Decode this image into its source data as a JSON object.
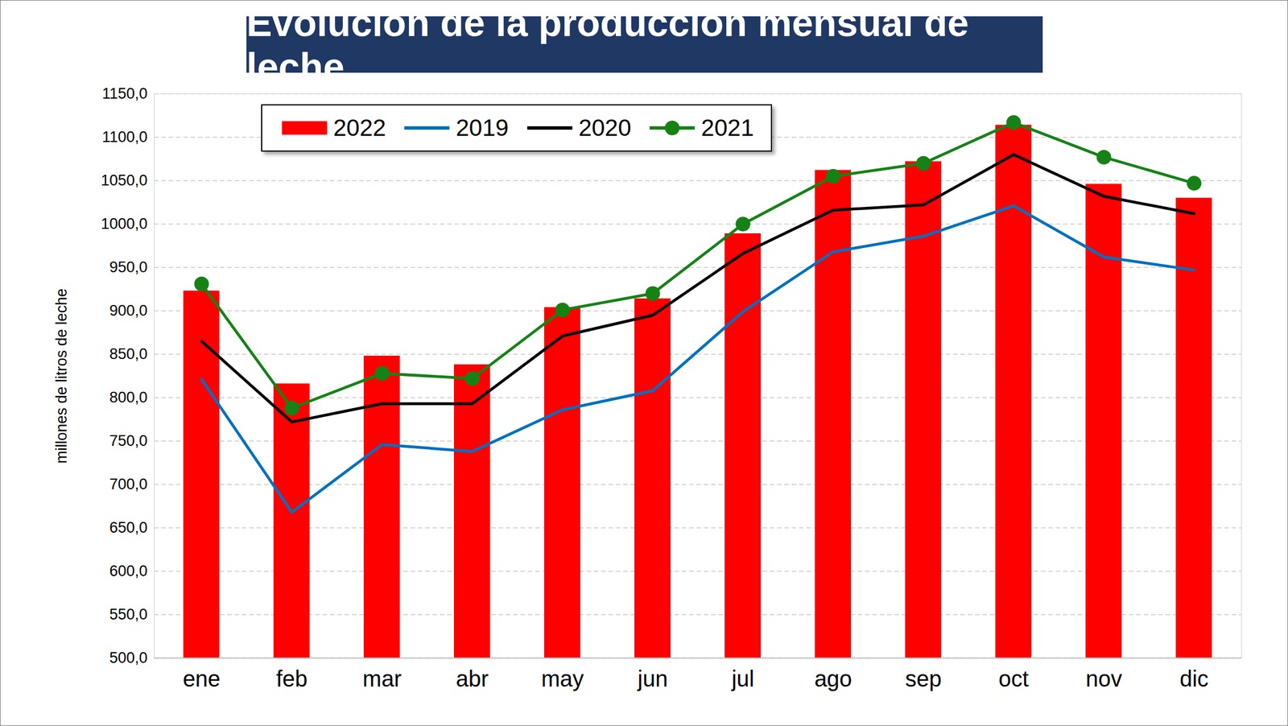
{
  "chart_data": {
    "type": "bar",
    "title": "Evolución de la producción mensual de leche",
    "ylabel": "millones de litros de leche",
    "categories": [
      "ene",
      "feb",
      "mar",
      "abr",
      "may",
      "jun",
      "jul",
      "ago",
      "sep",
      "oct",
      "nov",
      "dic"
    ],
    "series": [
      {
        "name": "2022",
        "type": "bar",
        "color": "#ff0000",
        "values": [
          923,
          816,
          848,
          838,
          904,
          914,
          989,
          1062,
          1072,
          1114,
          1046,
          1030
        ]
      },
      {
        "name": "2019",
        "type": "line",
        "color": "#0070c0",
        "values": [
          821,
          668,
          746,
          738,
          786,
          808,
          899,
          968,
          986,
          1021,
          962,
          947
        ]
      },
      {
        "name": "2020",
        "type": "line",
        "color": "#000000",
        "values": [
          865,
          772,
          793,
          793,
          871,
          895,
          966,
          1016,
          1022,
          1080,
          1032,
          1012
        ]
      },
      {
        "name": "2021",
        "type": "line",
        "color": "#168216",
        "marker": "circle",
        "values": [
          931,
          788,
          828,
          822,
          901,
          920,
          1000,
          1055,
          1070,
          1117,
          1077,
          1047
        ]
      }
    ],
    "ylim": [
      500,
      1150
    ],
    "yticks": [
      {
        "value": 500,
        "label": "500,0"
      },
      {
        "value": 550,
        "label": "550,0"
      },
      {
        "value": 600,
        "label": "600,0"
      },
      {
        "value": 650,
        "label": "650,0"
      },
      {
        "value": 700,
        "label": "700,0"
      },
      {
        "value": 750,
        "label": "750,0"
      },
      {
        "value": 800,
        "label": "800,0"
      },
      {
        "value": 850,
        "label": "850,0"
      },
      {
        "value": 900,
        "label": "900,0"
      },
      {
        "value": 950,
        "label": "950,0"
      },
      {
        "value": 1000,
        "label": "1000,0"
      },
      {
        "value": 1050,
        "label": "1050,0"
      },
      {
        "value": 1100,
        "label": "1100,0"
      },
      {
        "value": 1150,
        "label": "1150,0"
      }
    ],
    "grid": true,
    "legend": "top-left"
  }
}
